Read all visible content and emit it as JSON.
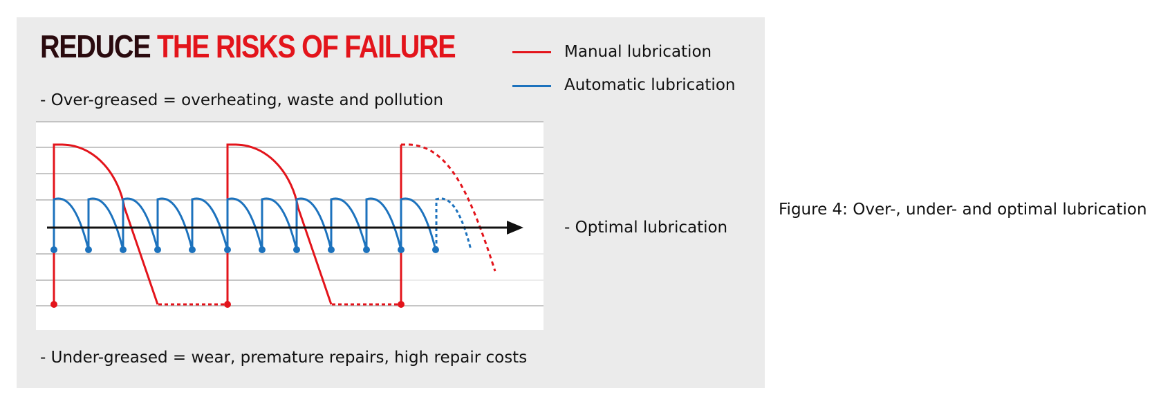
{
  "headline": {
    "part1": "REDUCE",
    "part2": "THE RISKS OF FAILURE"
  },
  "legend": [
    {
      "label": "Manual lubrication",
      "color": "#e3141b"
    },
    {
      "label": "Automatic lubrication",
      "color": "#1c72bd"
    }
  ],
  "annotations": {
    "over": "- Over-greased = overheating, waste and pollution",
    "optimal": "- Optimal lubrication",
    "under": "- Under-greased = wear, premature repairs, high repair costs"
  },
  "caption": "Figure 4: Over-, under- and optimal lubrication",
  "colors": {
    "panel": "#ebebeb",
    "manual": "#e3141b",
    "automatic": "#1c72bd",
    "axis": "#111111",
    "grid": "#b4b4b4"
  },
  "icons": {
    "axis_arrow": "arrowhead"
  }
}
